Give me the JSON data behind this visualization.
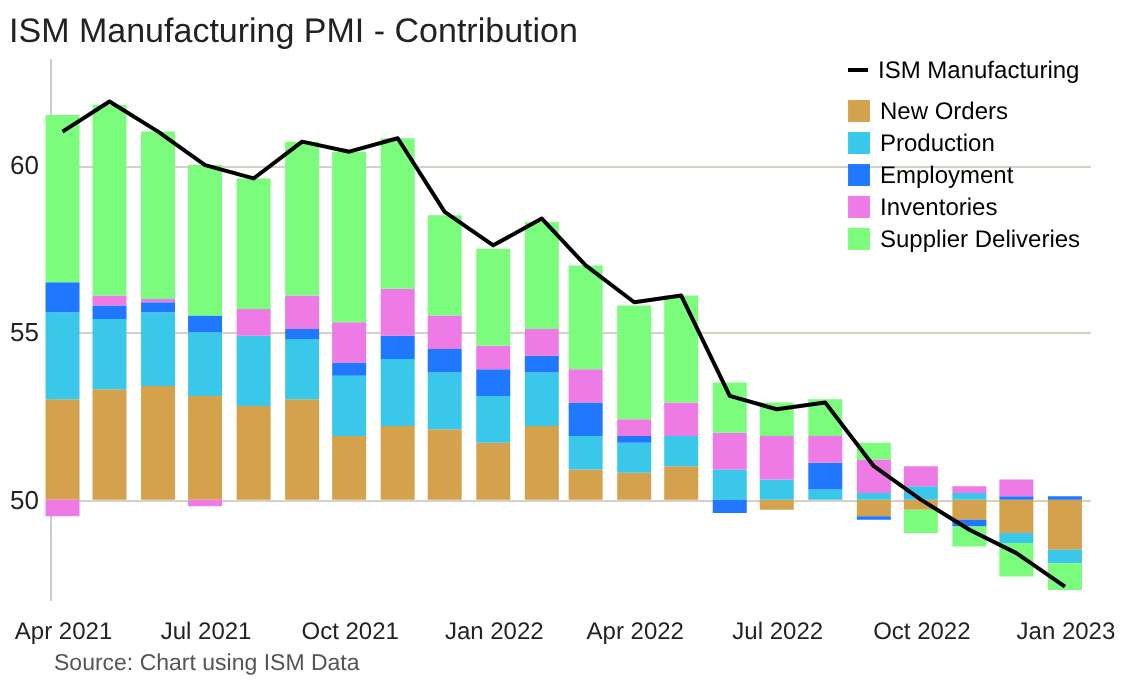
{
  "chart_data": {
    "type": "bar",
    "title": "ISM Manufacturing PMI - Contribution",
    "x": [
      "2021-04",
      "2021-05",
      "2021-06",
      "2021-07",
      "2021-08",
      "2021-09",
      "2021-10",
      "2021-11",
      "2021-12",
      "2022-01",
      "2022-02",
      "2022-03",
      "2022-04",
      "2022-05",
      "2022-06",
      "2022-07",
      "2022-08",
      "2022-09",
      "2022-10",
      "2022-11",
      "2022-12",
      "2023-01"
    ],
    "series": [
      {
        "name": "New Orders",
        "color": "#d4a24c",
        "values": [
          3.0,
          3.3,
          3.4,
          3.1,
          2.8,
          3.0,
          1.9,
          2.2,
          2.1,
          1.7,
          2.2,
          0.9,
          0.8,
          1.0,
          null,
          -0.3,
          null,
          -0.5,
          -0.3,
          -0.6,
          -1.0,
          -1.5
        ],
        "base": [
          50,
          50,
          50,
          50,
          50,
          50,
          50,
          50,
          50,
          50,
          50,
          50,
          50,
          50,
          null,
          50,
          null,
          50,
          50,
          50,
          50,
          50
        ]
      },
      {
        "name": "Production",
        "color": "#3ac8ea",
        "values": [
          2.6,
          2.1,
          2.2,
          1.9,
          2.1,
          1.8,
          1.8,
          2.0,
          1.7,
          1.4,
          1.6,
          1.0,
          0.9,
          0.9,
          0.9,
          0.6,
          0.3,
          0.2,
          0.4,
          0.2,
          -0.3,
          -0.4
        ],
        "base": [
          53.0,
          53.3,
          53.4,
          53.1,
          52.8,
          53.0,
          51.9,
          52.2,
          52.1,
          51.7,
          52.2,
          50.9,
          50.8,
          51.0,
          50,
          50,
          50,
          50,
          50,
          50,
          49.0,
          48.5
        ]
      },
      {
        "name": "Employment",
        "color": "#1f78ff",
        "values": [
          0.9,
          0.4,
          0.3,
          0.5,
          null,
          0.3,
          0.4,
          0.7,
          0.7,
          0.8,
          0.5,
          1.0,
          0.2,
          null,
          -0.4,
          null,
          0.8,
          -0.1,
          null,
          -0.2,
          0.1,
          0.1
        ],
        "base": [
          55.6,
          55.4,
          55.6,
          55.0,
          null,
          54.8,
          53.7,
          54.2,
          53.8,
          53.1,
          53.8,
          51.9,
          51.7,
          null,
          50,
          null,
          50.3,
          49.5,
          null,
          49.4,
          50,
          50
        ]
      },
      {
        "name": "Inventories",
        "color": "#ee7ae6",
        "values": [
          -0.5,
          0.3,
          0.1,
          -0.2,
          0.8,
          1.0,
          1.2,
          1.4,
          1.0,
          0.7,
          0.8,
          1.0,
          0.5,
          1.0,
          1.1,
          1.3,
          0.8,
          1.0,
          0.6,
          0.2,
          0.5,
          null
        ],
        "base": [
          50,
          55.8,
          55.9,
          50,
          54.9,
          55.1,
          54.1,
          54.9,
          54.5,
          53.9,
          54.3,
          52.9,
          51.9,
          51.9,
          50.9,
          50.6,
          51.1,
          50.2,
          50.4,
          50.2,
          50.1,
          null
        ]
      },
      {
        "name": "Supplier Deliveries",
        "color": "#7cfc7c",
        "values": [
          5.0,
          5.7,
          5.0,
          4.5,
          3.9,
          4.6,
          5.1,
          4.5,
          3.0,
          2.9,
          3.2,
          3.1,
          3.4,
          3.2,
          1.5,
          1.0,
          1.1,
          0.5,
          -0.7,
          -0.6,
          -1.0,
          -0.8
        ],
        "base": [
          56.5,
          56.1,
          56.0,
          55.5,
          55.7,
          56.1,
          55.3,
          56.3,
          55.5,
          54.6,
          55.1,
          53.9,
          52.4,
          52.9,
          52.0,
          51.9,
          51.9,
          51.2,
          49.7,
          49.2,
          48.7,
          48.1
        ]
      },
      {
        "name": "ISM Manufacturing",
        "type": "line",
        "color": "#000000",
        "values": [
          61.0,
          61.9,
          61.0,
          60.0,
          59.6,
          60.7,
          60.4,
          60.8,
          58.6,
          57.6,
          58.4,
          57.0,
          55.9,
          56.1,
          53.1,
          52.7,
          52.9,
          51.0,
          50.0,
          49.1,
          48.4,
          47.4
        ]
      }
    ],
    "ylim": [
      47,
      63.2
    ],
    "yticks": [
      50,
      55,
      60
    ],
    "xlim": [
      "2021-03-24",
      "2023-01-17"
    ],
    "xticks": [
      {
        "value": "2021-04",
        "label": "Apr 2021"
      },
      {
        "value": "2021-07",
        "label": "Jul 2021"
      },
      {
        "value": "2021-10",
        "label": "Oct 2021"
      },
      {
        "value": "2022-01",
        "label": "Jan 2022"
      },
      {
        "value": "2022-04",
        "label": "Apr 2022"
      },
      {
        "value": "2022-07",
        "label": "Jul 2022"
      },
      {
        "value": "2022-10",
        "label": "Oct 2022"
      },
      {
        "value": "2023-01",
        "label": "Jan 2023"
      }
    ],
    "grid": "y",
    "legend": "top right",
    "annotations": [
      "Source: Chart using ISM Data"
    ]
  }
}
